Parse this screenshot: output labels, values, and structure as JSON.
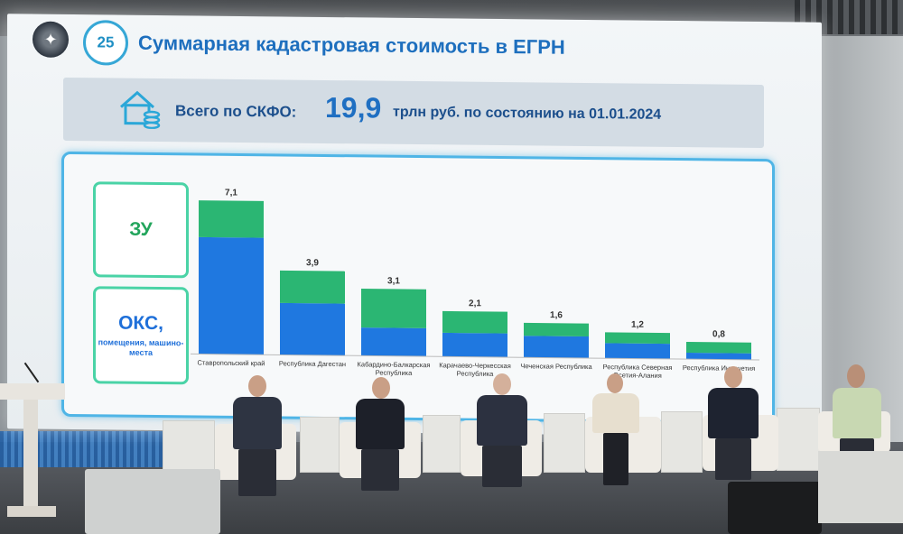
{
  "slide": {
    "title": "Суммарная кадастровая стоимость в ЕГРН",
    "logo_text": "25",
    "banner": {
      "prefix": "Всего по СКФО:",
      "value": "19,9",
      "suffix": "трлн руб. по состоянию на 01.01.2024"
    },
    "legend": {
      "land": "ЗУ",
      "buildings": "ОКС,",
      "buildings_sub": "помещения, машино-места"
    },
    "colors": {
      "land": "#2bb673",
      "buildings": "#1f78e0",
      "accent": "#1e6fbe"
    }
  },
  "chart_data": {
    "type": "bar",
    "stacked": true,
    "categories": [
      "Ставропольский край",
      "Республика Дагестан",
      "Кабардино-Балкарская Республика",
      "Карачаево-Черкесская Республика",
      "Чеченская Республика",
      "Республика Северная Осетия-Алания",
      "Республика Ингушетия"
    ],
    "totals": [
      "7,1",
      "3,9",
      "3,1",
      "2,1",
      "1,6",
      "1,2",
      "0,8"
    ],
    "total_values": [
      7.1,
      3.9,
      3.1,
      2.1,
      1.6,
      1.2,
      0.8
    ],
    "series": [
      {
        "name": "ОКС, помещения, машино-места",
        "values": [
          5.4,
          2.4,
          1.3,
          1.1,
          1.0,
          0.7,
          0.3
        ]
      },
      {
        "name": "ЗУ",
        "values": [
          1.7,
          1.5,
          1.8,
          1.0,
          0.6,
          0.5,
          0.5
        ]
      }
    ],
    "ylim": [
      0,
      7.5
    ],
    "legend": "left"
  }
}
